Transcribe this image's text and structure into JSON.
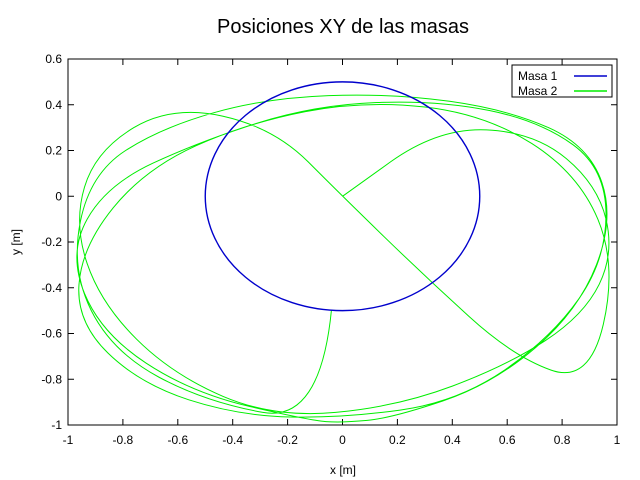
{
  "chart_data": {
    "type": "line",
    "title": "Posiciones XY de las masas",
    "xlabel": "x  [m]",
    "ylabel": "y  [m]",
    "xlim": [
      -1,
      1
    ],
    "ylim": [
      -1,
      0.6
    ],
    "xticks": [
      "-1",
      "-0.8",
      "-0.6",
      "-0.4",
      "-0.2",
      "0",
      "0.2",
      "0.4",
      "0.6",
      "0.8",
      "1"
    ],
    "yticks": [
      "-1",
      "-0.8",
      "-0.6",
      "-0.4",
      "-0.2",
      "0",
      "0.2",
      "0.4",
      "0.6"
    ],
    "xtick_values": [
      -1,
      -0.8,
      -0.6,
      -0.4,
      -0.2,
      0,
      0.2,
      0.4,
      0.6,
      0.8,
      1
    ],
    "ytick_values": [
      -1,
      -0.8,
      -0.6,
      -0.4,
      -0.2,
      0,
      0.2,
      0.4,
      0.6
    ],
    "grid": false,
    "legend_position": "top-right",
    "series": [
      {
        "name": "Masa 1",
        "color": "#0000cc",
        "description_values": {
          "shape": "circle",
          "center": [
            0,
            0
          ],
          "radius": 0.5
        },
        "x": [
          0.5,
          0.483,
          0.433,
          0.354,
          0.25,
          0.129,
          0,
          -0.129,
          -0.25,
          -0.354,
          -0.433,
          -0.483,
          -0.5,
          -0.483,
          -0.433,
          -0.354,
          -0.25,
          -0.129,
          0,
          0.129,
          0.25,
          0.354,
          0.433,
          0.483,
          0.5
        ],
        "y": [
          0,
          0.129,
          0.25,
          0.354,
          0.433,
          0.483,
          0.5,
          0.483,
          0.433,
          0.354,
          0.25,
          0.129,
          0,
          -0.129,
          -0.25,
          -0.354,
          -0.433,
          -0.483,
          -0.5,
          -0.483,
          -0.433,
          -0.354,
          -0.25,
          -0.129,
          0
        ]
      },
      {
        "name": "Masa 2",
        "color": "#00ee00",
        "x": [
          0,
          0.35,
          0.7,
          0.93,
          0.99,
          0.88,
          0.6,
          0.2,
          -0.25,
          -0.62,
          -0.88,
          -0.98,
          -0.9,
          -0.62,
          -0.25,
          0,
          0.3,
          0.62,
          0.9,
          1.0,
          0.86,
          0.52,
          0.08,
          -0.35,
          -0.72,
          -0.95,
          -0.97,
          -0.74,
          -0.38,
          0,
          0.42,
          0.76,
          0.96,
          0.96,
          0.72,
          0.35,
          -0.1,
          -0.52,
          -0.86,
          -1.0,
          -0.88,
          -0.55,
          -0.12,
          0,
          0.18,
          0.55,
          0.86,
          0.99,
          0.9,
          0.6,
          0.18,
          -0.28,
          -0.66,
          -0.92,
          -0.99,
          -0.84,
          -0.5,
          -0.08,
          0
        ],
        "y": [
          0,
          0.3,
          0.28,
          0.05,
          -0.25,
          -0.52,
          -0.74,
          -0.92,
          -0.97,
          -0.78,
          -0.47,
          -0.12,
          0.2,
          0.4,
          0.3,
          0,
          -0.35,
          -0.7,
          -0.82,
          -0.3,
          0.1,
          0.36,
          0.42,
          0.32,
          0.12,
          -0.22,
          -0.55,
          -0.82,
          -0.96,
          -0.97,
          -0.9,
          -0.62,
          -0.28,
          0.12,
          0.33,
          0.42,
          0.4,
          0.24,
          0.05,
          -0.25,
          -0.6,
          -0.86,
          -0.98,
          -0.99,
          -0.97,
          -0.82,
          -0.5,
          -0.1,
          0.22,
          0.38,
          0.45,
          0.43,
          0.3,
          0.1,
          -0.32,
          -0.68,
          -0.9,
          -0.99,
          0
        ]
      }
    ]
  }
}
